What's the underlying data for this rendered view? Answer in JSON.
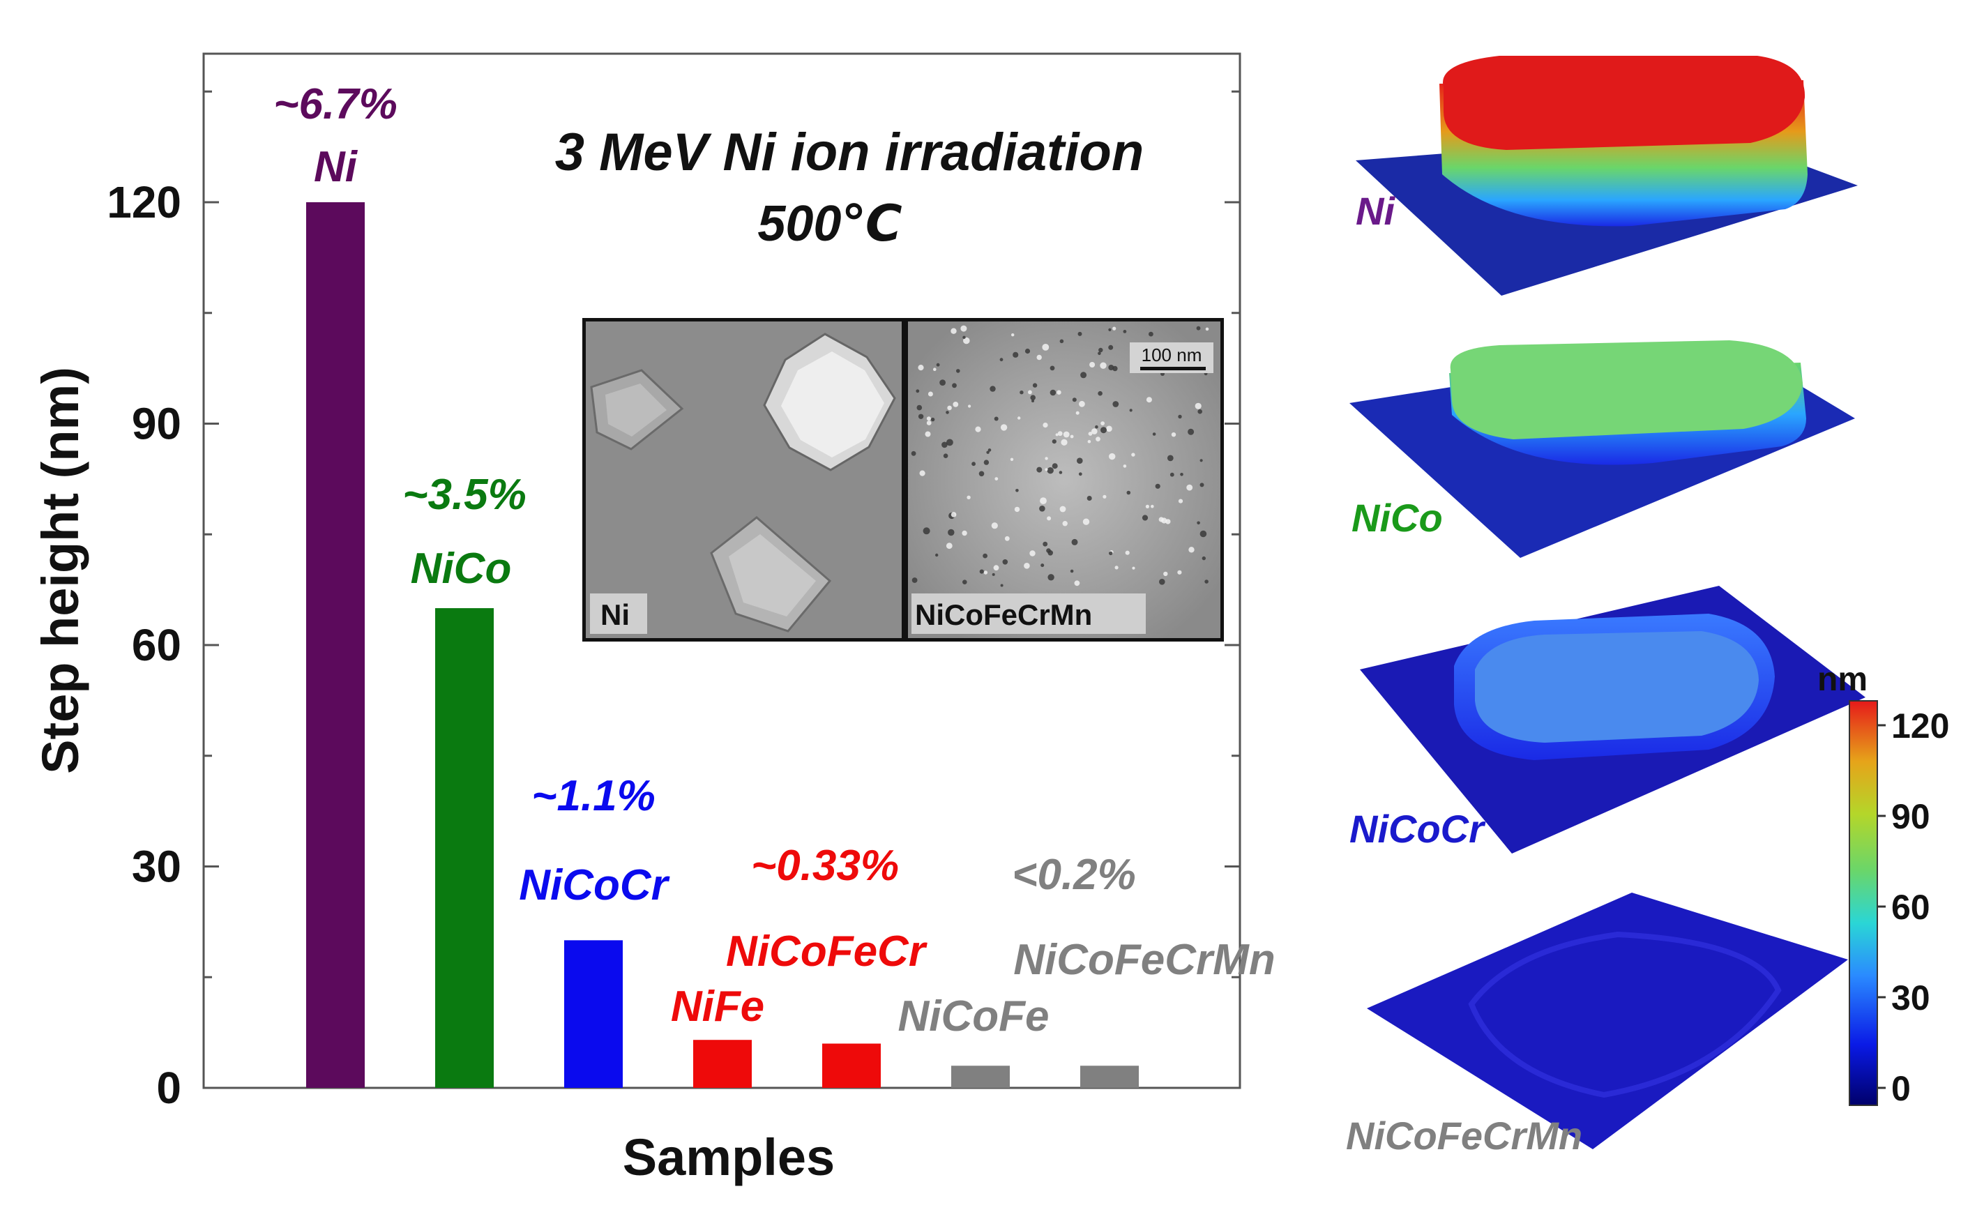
{
  "chart_data": {
    "type": "bar",
    "title": "3 MeV Ni ion irradiation",
    "subtitle": "500℃",
    "xlabel": "Samples",
    "ylabel": "Step height (nm)",
    "ylim": [
      0,
      140
    ],
    "yticks": [
      0,
      30,
      60,
      90,
      120
    ],
    "categories": [
      "Ni",
      "NiCo",
      "NiCoCr",
      "NiFe",
      "NiCoFeCr",
      "NiCoFe",
      "NiCoFeCrMn"
    ],
    "values": [
      120,
      65,
      20,
      6.5,
      6,
      3,
      3
    ],
    "percent_labels": [
      "~6.7%",
      "~3.5%",
      "~1.1%",
      "~0.33%",
      "~0.33%",
      "<0.2%",
      "<0.2%"
    ],
    "colors": [
      "#5c0a5c",
      "#0a7a10",
      "#0a0aee",
      "#ee0a0a",
      "#ee0a0a",
      "#808080",
      "#808080"
    ]
  },
  "inset": {
    "left_label": "Ni",
    "right_label": "NiCoFeCrMn",
    "scale_bar": "100 nm"
  },
  "surface_maps": {
    "samples": [
      {
        "label": "Ni",
        "color": "#6a1a8a",
        "height": 120
      },
      {
        "label": "NiCo",
        "color": "#1a9a1a",
        "height": 65
      },
      {
        "label": "NiCoCr",
        "color": "#1a1acc",
        "height": 20
      },
      {
        "label": "NiCoFeCrMn",
        "color": "#808080",
        "height": 3
      }
    ],
    "colorbar": {
      "unit": "nm",
      "ticks": [
        "120",
        "90",
        "60",
        "30",
        "0"
      ]
    }
  }
}
